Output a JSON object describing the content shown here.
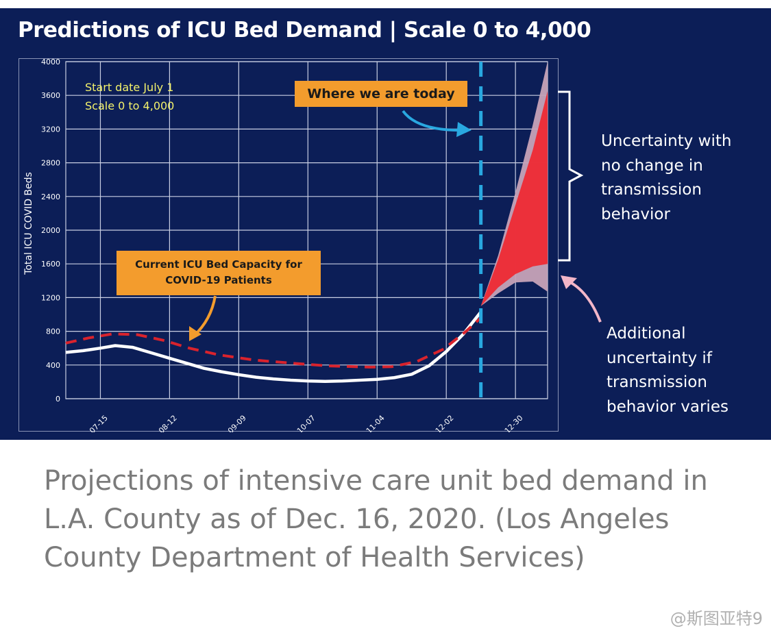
{
  "slide": {
    "title": "Predictions of ICU Bed Demand | Scale 0 to 4,000",
    "background": "#0c1e57"
  },
  "annotations": {
    "start_note": [
      "Start date July 1",
      "Scale 0 to 4,000"
    ],
    "today_label": "Where we are today",
    "capacity_label": [
      "Current ICU Bed Capacity for",
      "COVID-19 Patients"
    ],
    "uncertainty_note": [
      "Uncertainty with",
      "no change in",
      "transmission",
      "behavior"
    ],
    "additional_note": [
      "Additional",
      "uncertainty if",
      "transmission",
      "behavior varies"
    ]
  },
  "colors": {
    "observed": "#ffffff",
    "capacity": "#d9232d",
    "today_line": "#29a8e0",
    "band_no_change": "#ee2a34",
    "band_varies": "#c7a3b8",
    "annotation_box": "#f39c2d",
    "start_note_text": "#f4f26b"
  },
  "chart_data": {
    "type": "line",
    "title": "Predictions of ICU Bed Demand | Scale 0 to 4,000",
    "xlabel": "",
    "ylabel": "Total ICU COVID Beds",
    "x_type": "date",
    "xlim": [
      "2020-07-01",
      "2021-01-12"
    ],
    "ylim": [
      0,
      4000
    ],
    "y_ticks": [
      0,
      400,
      800,
      1200,
      1600,
      2000,
      2400,
      2800,
      3200,
      3600,
      4000
    ],
    "x_ticks": [
      {
        "date": "2020-07-15",
        "label": "07-15"
      },
      {
        "date": "2020-08-12",
        "label": "08-12"
      },
      {
        "date": "2020-09-09",
        "label": "09-09"
      },
      {
        "date": "2020-10-07",
        "label": "10-07"
      },
      {
        "date": "2020-11-04",
        "label": "11-04"
      },
      {
        "date": "2020-12-02",
        "label": "12-02"
      },
      {
        "date": "2020-12-30",
        "label": "12-30"
      }
    ],
    "grid": true,
    "today": "2020-12-16",
    "series": [
      {
        "key": "observed",
        "style": "solid-white",
        "points": [
          [
            "2020-07-01",
            550
          ],
          [
            "2020-07-08",
            570
          ],
          [
            "2020-07-15",
            600
          ],
          [
            "2020-07-21",
            630
          ],
          [
            "2020-07-28",
            610
          ],
          [
            "2020-08-04",
            550
          ],
          [
            "2020-08-12",
            480
          ],
          [
            "2020-08-19",
            420
          ],
          [
            "2020-08-26",
            360
          ],
          [
            "2020-09-02",
            320
          ],
          [
            "2020-09-09",
            285
          ],
          [
            "2020-09-16",
            255
          ],
          [
            "2020-09-23",
            235
          ],
          [
            "2020-09-30",
            220
          ],
          [
            "2020-10-07",
            210
          ],
          [
            "2020-10-14",
            205
          ],
          [
            "2020-10-21",
            210
          ],
          [
            "2020-10-28",
            220
          ],
          [
            "2020-11-04",
            230
          ],
          [
            "2020-11-11",
            250
          ],
          [
            "2020-11-18",
            290
          ],
          [
            "2020-11-25",
            390
          ],
          [
            "2020-12-02",
            560
          ],
          [
            "2020-12-09",
            770
          ],
          [
            "2020-12-16",
            1030
          ]
        ]
      },
      {
        "key": "capacity",
        "style": "dashed-red",
        "points": [
          [
            "2020-07-01",
            660
          ],
          [
            "2020-07-10",
            720
          ],
          [
            "2020-07-20",
            770
          ],
          [
            "2020-07-30",
            760
          ],
          [
            "2020-08-10",
            690
          ],
          [
            "2020-08-20",
            600
          ],
          [
            "2020-09-01",
            520
          ],
          [
            "2020-09-15",
            460
          ],
          [
            "2020-10-01",
            420
          ],
          [
            "2020-10-15",
            390
          ],
          [
            "2020-11-01",
            375
          ],
          [
            "2020-11-10",
            380
          ],
          [
            "2020-11-20",
            440
          ],
          [
            "2020-12-01",
            590
          ],
          [
            "2020-12-10",
            800
          ],
          [
            "2020-12-16",
            960
          ]
        ]
      }
    ],
    "bands": [
      {
        "key": "varies",
        "upper": [
          [
            "2020-12-16",
            1100
          ],
          [
            "2020-12-23",
            1700
          ],
          [
            "2020-12-30",
            2450
          ],
          [
            "2021-01-06",
            3250
          ],
          [
            "2021-01-12",
            4000
          ]
        ],
        "lower": [
          [
            "2020-12-16",
            1100
          ],
          [
            "2020-12-23",
            1250
          ],
          [
            "2020-12-30",
            1380
          ],
          [
            "2021-01-06",
            1390
          ],
          [
            "2021-01-12",
            1270
          ]
        ]
      },
      {
        "key": "no_change",
        "upper": [
          [
            "2020-12-16",
            1100
          ],
          [
            "2020-12-23",
            1650
          ],
          [
            "2020-12-30",
            2300
          ],
          [
            "2021-01-06",
            2950
          ],
          [
            "2021-01-12",
            3650
          ]
        ],
        "lower": [
          [
            "2020-12-16",
            1100
          ],
          [
            "2020-12-23",
            1320
          ],
          [
            "2020-12-30",
            1480
          ],
          [
            "2021-01-06",
            1570
          ],
          [
            "2021-01-12",
            1600
          ]
        ]
      }
    ]
  },
  "caption": "Projections of intensive care unit bed demand in L.A. County as of Dec. 16, 2020. (Los Angeles County Department of Health Services)",
  "watermark": "@斯图亚特9"
}
